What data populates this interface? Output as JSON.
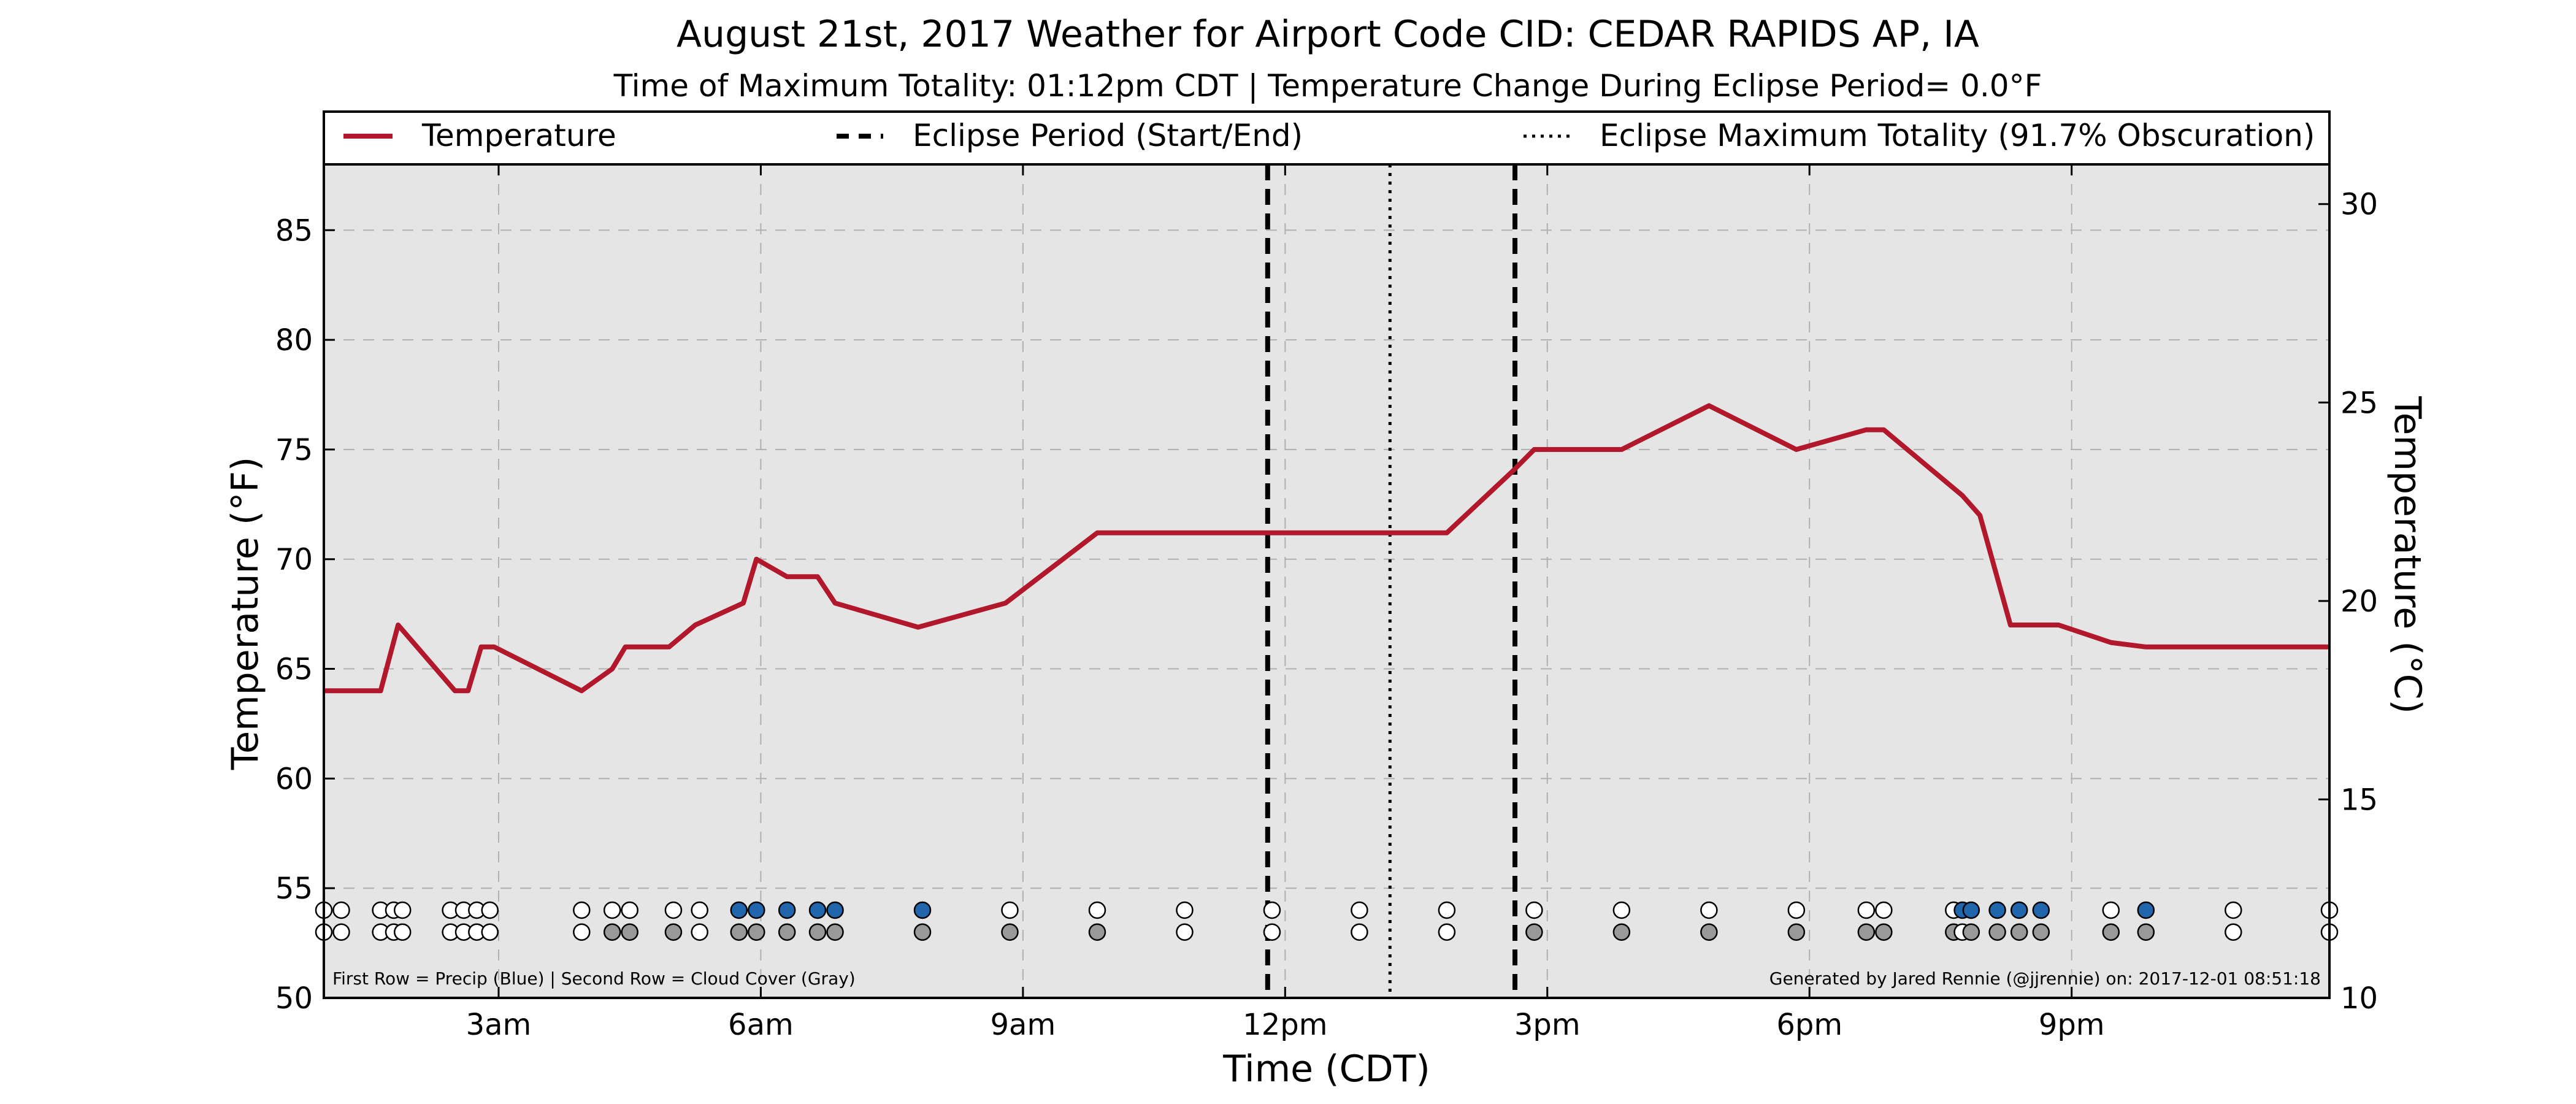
{
  "chart_data": {
    "type": "line",
    "title": "August 21st, 2017 Weather for Airport Code CID: CEDAR RAPIDS AP, IA",
    "subtitle": "Time of Maximum Totality: 01:12pm CDT | Temperature Change During Eclipse Period= 0.0°F",
    "xlabel": "Time (CDT)",
    "ylabel": "Temperature (°F)",
    "ylabel_right": "Temperature (°C)",
    "x_unit": "hours since midnight (CDT)",
    "xlim": [
      1,
      23.95
    ],
    "ylim": [
      50,
      88
    ],
    "ylim_right": [
      10,
      31
    ],
    "x_ticks": [
      {
        "x": 3,
        "label": "3am"
      },
      {
        "x": 6,
        "label": "6am"
      },
      {
        "x": 9,
        "label": "9am"
      },
      {
        "x": 12,
        "label": "12pm"
      },
      {
        "x": 15,
        "label": "3pm"
      },
      {
        "x": 18,
        "label": "6pm"
      },
      {
        "x": 21,
        "label": "9pm"
      }
    ],
    "y_ticks": [
      50,
      55,
      60,
      65,
      70,
      75,
      80,
      85
    ],
    "y_ticks_right": [
      10,
      15,
      20,
      25,
      30
    ],
    "grid": true,
    "legend": {
      "placement": "top",
      "items": [
        {
          "label": "Temperature",
          "style": "solid",
          "color": "#b2182b"
        },
        {
          "label": "Eclipse Period (Start/End)",
          "style": "dashed",
          "color": "#000000"
        },
        {
          "label": "Eclipse Maximum Totality (91.7% Obscuration)",
          "style": "dotted",
          "color": "#000000"
        }
      ]
    },
    "series": [
      {
        "name": "Temperature",
        "color": "#b2182b",
        "points": [
          [
            1.0,
            64
          ],
          [
            1.65,
            64
          ],
          [
            1.85,
            67
          ],
          [
            2.5,
            64
          ],
          [
            2.65,
            64
          ],
          [
            2.8,
            66
          ],
          [
            2.95,
            66
          ],
          [
            3.95,
            64
          ],
          [
            4.3,
            65
          ],
          [
            4.45,
            66
          ],
          [
            4.95,
            66
          ],
          [
            5.25,
            67
          ],
          [
            5.8,
            68
          ],
          [
            5.95,
            70
          ],
          [
            6.3,
            69.2
          ],
          [
            6.65,
            69.2
          ],
          [
            6.85,
            68
          ],
          [
            7.8,
            66.9
          ],
          [
            8.8,
            68
          ],
          [
            9.85,
            71.2
          ],
          [
            13.85,
            71.2
          ],
          [
            14.6,
            74
          ],
          [
            14.85,
            75
          ],
          [
            15.85,
            75
          ],
          [
            16.85,
            77
          ],
          [
            17.85,
            75
          ],
          [
            18.65,
            75.9
          ],
          [
            18.85,
            75.9
          ],
          [
            19.75,
            72.9
          ],
          [
            19.95,
            72
          ],
          [
            20.3,
            67
          ],
          [
            20.85,
            67
          ],
          [
            21.45,
            66.2
          ],
          [
            21.85,
            66
          ],
          [
            23.95,
            66
          ]
        ]
      }
    ],
    "eclipse": {
      "start": 11.8,
      "end": 14.63,
      "max_totality": 13.2,
      "max_totality_label": "01:12pm CDT",
      "obscuration_percent": 91.7
    },
    "precip_row": [
      {
        "x": 1.0,
        "v": 0
      },
      {
        "x": 1.2,
        "v": 0
      },
      {
        "x": 1.65,
        "v": 0
      },
      {
        "x": 1.8,
        "v": 0
      },
      {
        "x": 1.9,
        "v": 0
      },
      {
        "x": 2.45,
        "v": 0
      },
      {
        "x": 2.6,
        "v": 0
      },
      {
        "x": 2.75,
        "v": 0
      },
      {
        "x": 2.9,
        "v": 0
      },
      {
        "x": 3.95,
        "v": 0
      },
      {
        "x": 4.3,
        "v": 0
      },
      {
        "x": 4.5,
        "v": 0
      },
      {
        "x": 5.0,
        "v": 0
      },
      {
        "x": 5.3,
        "v": 0
      },
      {
        "x": 5.75,
        "v": 1
      },
      {
        "x": 5.95,
        "v": 1
      },
      {
        "x": 6.3,
        "v": 1
      },
      {
        "x": 6.65,
        "v": 1
      },
      {
        "x": 6.85,
        "v": 1
      },
      {
        "x": 7.85,
        "v": 1
      },
      {
        "x": 8.85,
        "v": 0
      },
      {
        "x": 9.85,
        "v": 0
      },
      {
        "x": 10.85,
        "v": 0
      },
      {
        "x": 11.85,
        "v": 0
      },
      {
        "x": 12.85,
        "v": 0
      },
      {
        "x": 13.85,
        "v": 0
      },
      {
        "x": 14.85,
        "v": 0
      },
      {
        "x": 15.85,
        "v": 0
      },
      {
        "x": 16.85,
        "v": 0
      },
      {
        "x": 17.85,
        "v": 0
      },
      {
        "x": 18.65,
        "v": 0
      },
      {
        "x": 18.85,
        "v": 0
      },
      {
        "x": 19.65,
        "v": 0
      },
      {
        "x": 19.75,
        "v": 1
      },
      {
        "x": 19.85,
        "v": 1
      },
      {
        "x": 20.15,
        "v": 1
      },
      {
        "x": 20.4,
        "v": 1
      },
      {
        "x": 20.65,
        "v": 1
      },
      {
        "x": 21.45,
        "v": 0
      },
      {
        "x": 21.85,
        "v": 1
      },
      {
        "x": 22.85,
        "v": 0
      },
      {
        "x": 23.95,
        "v": 0
      }
    ],
    "cloud_row": [
      {
        "x": 1.0,
        "v": 0
      },
      {
        "x": 1.2,
        "v": 0
      },
      {
        "x": 1.65,
        "v": 0
      },
      {
        "x": 1.8,
        "v": 0
      },
      {
        "x": 1.9,
        "v": 0
      },
      {
        "x": 2.45,
        "v": 0
      },
      {
        "x": 2.6,
        "v": 0
      },
      {
        "x": 2.75,
        "v": 0
      },
      {
        "x": 2.9,
        "v": 0
      },
      {
        "x": 3.95,
        "v": 0
      },
      {
        "x": 4.3,
        "v": 1
      },
      {
        "x": 4.5,
        "v": 1
      },
      {
        "x": 5.0,
        "v": 1
      },
      {
        "x": 5.3,
        "v": 0
      },
      {
        "x": 5.75,
        "v": 1
      },
      {
        "x": 5.95,
        "v": 1
      },
      {
        "x": 6.3,
        "v": 1
      },
      {
        "x": 6.65,
        "v": 1
      },
      {
        "x": 6.85,
        "v": 1
      },
      {
        "x": 7.85,
        "v": 1
      },
      {
        "x": 8.85,
        "v": 1
      },
      {
        "x": 9.85,
        "v": 1
      },
      {
        "x": 10.85,
        "v": 0
      },
      {
        "x": 11.85,
        "v": 0
      },
      {
        "x": 12.85,
        "v": 0
      },
      {
        "x": 13.85,
        "v": 0
      },
      {
        "x": 14.85,
        "v": 1
      },
      {
        "x": 15.85,
        "v": 1
      },
      {
        "x": 16.85,
        "v": 1
      },
      {
        "x": 17.85,
        "v": 1
      },
      {
        "x": 18.65,
        "v": 1
      },
      {
        "x": 18.85,
        "v": 1
      },
      {
        "x": 19.65,
        "v": 1
      },
      {
        "x": 19.75,
        "v": 0
      },
      {
        "x": 19.85,
        "v": 1
      },
      {
        "x": 20.15,
        "v": 1
      },
      {
        "x": 20.4,
        "v": 1
      },
      {
        "x": 20.65,
        "v": 1
      },
      {
        "x": 21.45,
        "v": 1
      },
      {
        "x": 21.85,
        "v": 1
      },
      {
        "x": 22.85,
        "v": 0
      },
      {
        "x": 23.95,
        "v": 0
      }
    ],
    "annotations": {
      "bottom_left": "First Row = Precip (Blue) | Second Row = Cloud Cover (Gray)",
      "bottom_right": "Generated by Jared Rennie (@jjrennie) on: 2017-12-01 08:51:18"
    },
    "colors": {
      "temperature": "#b2182b",
      "precip": "#2166ac",
      "cloud": "#999999",
      "empty_marker": "#ffffff",
      "plot_bg": "#e5e5e5",
      "grid": "#b0b0b0"
    }
  }
}
